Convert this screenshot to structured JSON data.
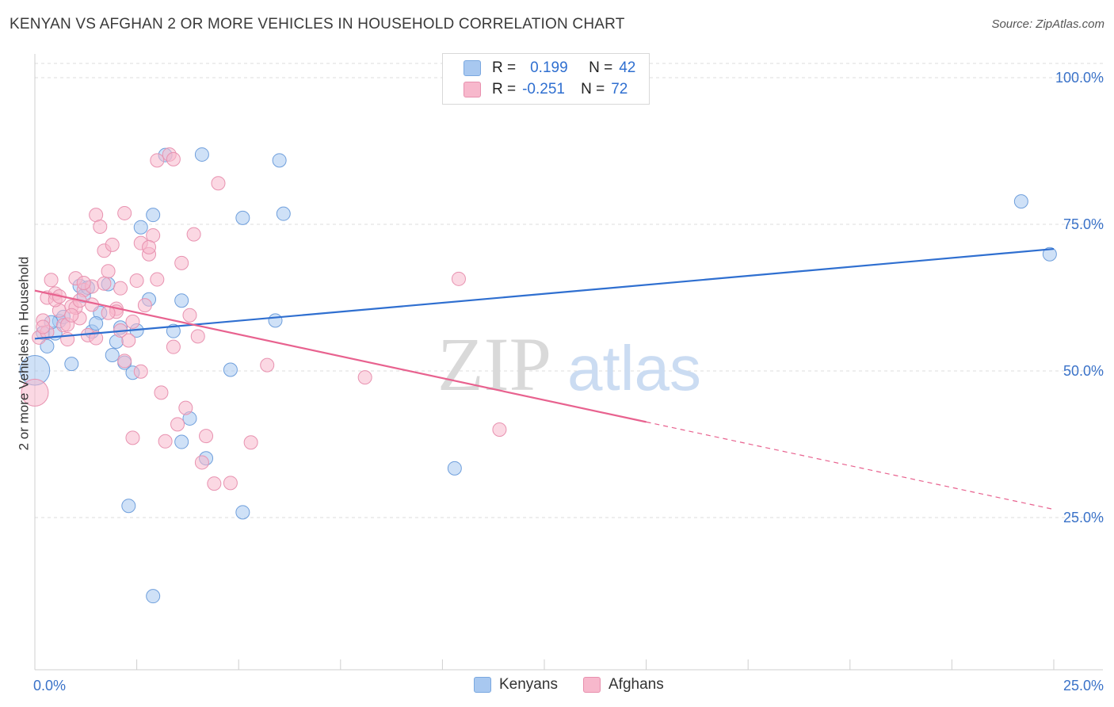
{
  "title": "KENYAN VS AFGHAN 2 OR MORE VEHICLES IN HOUSEHOLD CORRELATION CHART",
  "source": "Source: ZipAtlas.com",
  "watermark": {
    "zip": "ZIP",
    "atlas": "atlas"
  },
  "legend": {
    "rows": [
      {
        "r_label": "R =",
        "r_value": "0.199",
        "n_label": "N =",
        "n_value": "42",
        "color": "#a8c8f0",
        "border": "#7aa8e0"
      },
      {
        "r_label": "R =",
        "r_value": "-0.251",
        "n_label": "N =",
        "n_value": "72",
        "color": "#f7b8cc",
        "border": "#e890ae"
      }
    ]
  },
  "chart_data": {
    "type": "scatter",
    "title": "KENYAN VS AFGHAN 2 OR MORE VEHICLES IN HOUSEHOLD CORRELATION CHART",
    "xlabel": "",
    "ylabel": "2 or more Vehicles in Household",
    "xlim": [
      0,
      25
    ],
    "ylim": [
      3,
      103
    ],
    "x_tick_labels": [
      {
        "value": 0,
        "label": "0.0%"
      },
      {
        "value": 25,
        "label": "25.0%"
      }
    ],
    "y_tick_labels": [
      {
        "value": 100,
        "label": "100.0%"
      },
      {
        "value": 75,
        "label": "75.0%"
      },
      {
        "value": 50,
        "label": "50.0%"
      },
      {
        "value": 25,
        "label": "25.0%"
      }
    ],
    "grid": true,
    "legend_position": "top-center",
    "series": [
      {
        "name": "Kenyans",
        "color": "#a8c8f0",
        "stroke": "#6f9fdc",
        "trend_color": "#2f6fd0",
        "trend": {
          "x": [
            0,
            25
          ],
          "y": [
            55.5,
            70.8
          ]
        },
        "points": [
          [
            0.0,
            50.1,
            2.2
          ],
          [
            0.2,
            56.5,
            1
          ],
          [
            0.3,
            54.2,
            1
          ],
          [
            0.5,
            56.4,
            1
          ],
          [
            0.6,
            58.5,
            1
          ],
          [
            0.9,
            51.2,
            1
          ],
          [
            1.1,
            64.5,
            1
          ],
          [
            1.2,
            62.8,
            1
          ],
          [
            1.4,
            56.7,
            1
          ],
          [
            1.6,
            59.9,
            1
          ],
          [
            1.8,
            64.8,
            1
          ],
          [
            2.1,
            57.4,
            1
          ],
          [
            2.2,
            51.4,
            1
          ],
          [
            2.3,
            27.0,
            1
          ],
          [
            2.6,
            74.5,
            1
          ],
          [
            2.4,
            49.7,
            1
          ],
          [
            2.5,
            56.9,
            1
          ],
          [
            2.8,
            62.2,
            1
          ],
          [
            2.9,
            76.6,
            1
          ],
          [
            3.4,
            56.8,
            1
          ],
          [
            3.6,
            62.0,
            1
          ],
          [
            3.8,
            41.9,
            1
          ],
          [
            3.6,
            37.9,
            1
          ],
          [
            4.1,
            86.9,
            1
          ],
          [
            4.2,
            35.1,
            1
          ],
          [
            4.8,
            50.2,
            1
          ],
          [
            5.1,
            76.1,
            1
          ],
          [
            5.1,
            25.9,
            1
          ],
          [
            5.9,
            58.6,
            1
          ],
          [
            6.0,
            85.9,
            1
          ],
          [
            6.1,
            76.8,
            1
          ],
          [
            10.3,
            33.4,
            1
          ],
          [
            24.2,
            78.9,
            1
          ],
          [
            24.9,
            69.9,
            1
          ],
          [
            3.2,
            86.8,
            1
          ],
          [
            1.5,
            58.1,
            1
          ],
          [
            0.7,
            59.2,
            1
          ],
          [
            2.0,
            55.0,
            1
          ],
          [
            1.3,
            64.2,
            1
          ],
          [
            2.9,
            11.6,
            1
          ],
          [
            0.4,
            58.3,
            1
          ],
          [
            1.9,
            52.7,
            1
          ]
        ]
      },
      {
        "name": "Afghans",
        "color": "#f7b8cc",
        "stroke": "#e892b0",
        "trend_color": "#e8628f",
        "trend": {
          "x": [
            0,
            15
          ],
          "y": [
            63.7,
            41.3
          ]
        },
        "trend_dashed": {
          "x": [
            15,
            25
          ],
          "y": [
            41.3,
            26.4
          ]
        },
        "points": [
          [
            0.0,
            46.3,
            2.0
          ],
          [
            0.1,
            55.7,
            1
          ],
          [
            0.2,
            58.6,
            1
          ],
          [
            0.3,
            62.5,
            1
          ],
          [
            0.4,
            65.5,
            1
          ],
          [
            0.5,
            63.2,
            1
          ],
          [
            0.6,
            60.3,
            1
          ],
          [
            0.7,
            57.8,
            1
          ],
          [
            0.8,
            55.4,
            1
          ],
          [
            0.9,
            61.0,
            1
          ],
          [
            1.0,
            65.8,
            1
          ],
          [
            1.1,
            59.0,
            1
          ],
          [
            1.2,
            63.8,
            1
          ],
          [
            1.3,
            56.1,
            1
          ],
          [
            1.4,
            64.4,
            1
          ],
          [
            1.5,
            76.6,
            1
          ],
          [
            1.6,
            74.6,
            1
          ],
          [
            1.7,
            70.5,
            1
          ],
          [
            1.8,
            67.0,
            1
          ],
          [
            1.9,
            71.5,
            1
          ],
          [
            2.0,
            60.6,
            1
          ],
          [
            2.1,
            64.1,
            1
          ],
          [
            2.2,
            76.9,
            1
          ],
          [
            2.3,
            55.2,
            1
          ],
          [
            2.4,
            38.6,
            1
          ],
          [
            2.5,
            65.4,
            1
          ],
          [
            2.6,
            71.8,
            1
          ],
          [
            2.7,
            61.2,
            1
          ],
          [
            2.8,
            69.9,
            1
          ],
          [
            2.9,
            73.1,
            1
          ],
          [
            3.0,
            85.9,
            1
          ],
          [
            3.1,
            46.3,
            1
          ],
          [
            3.2,
            38.0,
            1
          ],
          [
            3.3,
            86.9,
            1
          ],
          [
            3.4,
            54.1,
            1
          ],
          [
            3.5,
            40.9,
            1
          ],
          [
            3.6,
            68.4,
            1
          ],
          [
            3.7,
            43.7,
            1
          ],
          [
            3.8,
            59.5,
            1
          ],
          [
            3.9,
            73.3,
            1
          ],
          [
            4.0,
            55.9,
            1
          ],
          [
            4.1,
            34.4,
            1
          ],
          [
            4.2,
            38.9,
            1
          ],
          [
            4.4,
            30.8,
            1
          ],
          [
            4.5,
            82.0,
            1
          ],
          [
            4.8,
            30.9,
            1
          ],
          [
            5.3,
            37.8,
            1
          ],
          [
            5.7,
            51.0,
            1
          ],
          [
            8.1,
            48.9,
            1
          ],
          [
            10.4,
            65.7,
            1
          ],
          [
            11.4,
            40.0,
            1
          ],
          [
            0.3,
            56.6,
            1
          ],
          [
            0.5,
            62.1,
            1
          ],
          [
            0.8,
            57.9,
            1
          ],
          [
            1.0,
            60.8,
            1
          ],
          [
            1.2,
            65.0,
            1
          ],
          [
            1.5,
            55.6,
            1
          ],
          [
            1.7,
            64.9,
            1
          ],
          [
            2.0,
            60.1,
            1
          ],
          [
            2.2,
            51.7,
            1
          ],
          [
            2.4,
            58.4,
            1
          ],
          [
            2.6,
            49.9,
            1
          ],
          [
            2.8,
            71.1,
            1
          ],
          [
            3.0,
            65.6,
            1
          ],
          [
            3.4,
            86.1,
            1
          ],
          [
            0.6,
            62.7,
            1
          ],
          [
            0.9,
            59.5,
            1
          ],
          [
            1.1,
            62.0,
            1
          ],
          [
            1.4,
            61.3,
            1
          ],
          [
            1.8,
            59.9,
            1
          ],
          [
            2.1,
            56.9,
            1
          ],
          [
            0.2,
            57.5,
            1
          ]
        ]
      }
    ]
  },
  "bottom_legend": [
    {
      "label": "Kenyans",
      "color": "#a8c8f0",
      "border": "#7aa8e0"
    },
    {
      "label": "Afghans",
      "color": "#f7b8cc",
      "border": "#e890ae"
    }
  ]
}
